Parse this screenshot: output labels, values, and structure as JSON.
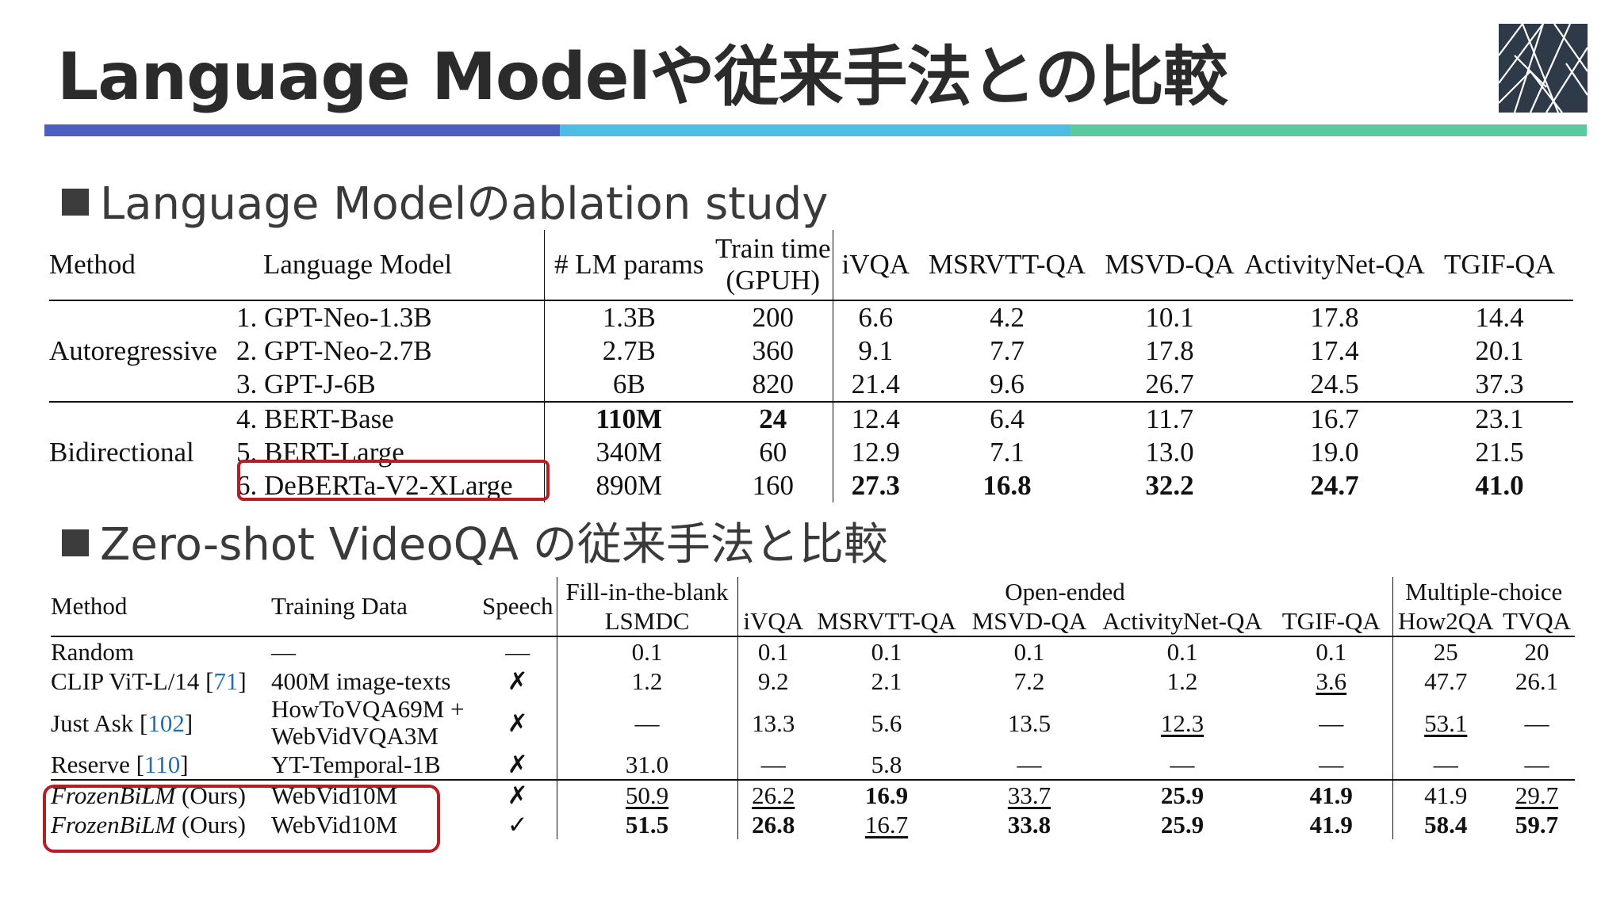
{
  "slide_title": "Language Modelや従来手法との比較",
  "accent_colors": [
    "#4a5fc1",
    "#4dbde5",
    "#5bcaa0"
  ],
  "highlight_color": "#b81d24",
  "section1": {
    "heading": "Language Modelのablation study",
    "header": {
      "method": "Method",
      "lm": "Language Model",
      "params": "# LM params",
      "train1": "Train time",
      "train2": "(GPUH)",
      "ivqa": "iVQA",
      "msrvtt": "MSRVTT-QA",
      "msvd": "MSVD-QA",
      "activitynet": "ActivityNet-QA",
      "tgif": "TGIF-QA"
    },
    "groups": [
      "Autoregressive",
      "Bidirectional"
    ],
    "rows": [
      {
        "lm": "1. GPT-Neo-1.3B",
        "params": "1.3B",
        "train": "200",
        "ivqa": "6.6",
        "msrvtt": "4.2",
        "msvd": "10.1",
        "activitynet": "17.8",
        "tgif": "14.4"
      },
      {
        "lm": "2. GPT-Neo-2.7B",
        "params": "2.7B",
        "train": "360",
        "ivqa": "9.1",
        "msrvtt": "7.7",
        "msvd": "17.8",
        "activitynet": "17.4",
        "tgif": "20.1"
      },
      {
        "lm": "3. GPT-J-6B",
        "params": "6B",
        "train": "820",
        "ivqa": "21.4",
        "msrvtt": "9.6",
        "msvd": "26.7",
        "activitynet": "24.5",
        "tgif": "37.3"
      },
      {
        "lm": "4. BERT-Base",
        "params": "110M",
        "train": "24",
        "ivqa": "12.4",
        "msrvtt": "6.4",
        "msvd": "11.7",
        "activitynet": "16.7",
        "tgif": "23.1"
      },
      {
        "lm": "5. BERT-Large",
        "params": "340M",
        "train": "60",
        "ivqa": "12.9",
        "msrvtt": "7.1",
        "msvd": "13.0",
        "activitynet": "19.0",
        "tgif": "21.5"
      },
      {
        "lm": "6. DeBERTa-V2-XLarge",
        "params": "890M",
        "train": "160",
        "ivqa": "27.3",
        "msrvtt": "16.8",
        "msvd": "32.2",
        "activitynet": "24.7",
        "tgif": "41.0"
      }
    ]
  },
  "section2": {
    "heading": "Zero-shot VideoQA の従来手法と比較",
    "header": {
      "method": "Method",
      "training_data": "Training Data",
      "speech": "Speech",
      "fill": "Fill-in-the-blank",
      "lsmdc": "LSMDC",
      "open": "Open-ended",
      "ivqa": "iVQA",
      "msrvtt": "MSRVTT-QA",
      "msvd": "MSVD-QA",
      "activitynet": "ActivityNet-QA",
      "tgif": "TGIF-QA",
      "mc": "Multiple-choice",
      "how2qa": "How2QA",
      "tvqa": "TVQA"
    },
    "rows": [
      {
        "method": "Random",
        "ref": "",
        "data": "—",
        "speech": "—",
        "lsmdc": "0.1",
        "ivqa": "0.1",
        "msrvtt": "0.1",
        "msvd": "0.1",
        "activitynet": "0.1",
        "tgif": "0.1",
        "how2qa": "25",
        "tvqa": "20"
      },
      {
        "method": "CLIP ViT-L/14 [",
        "ref": "71",
        "data": "400M image-texts",
        "speech": "✗",
        "lsmdc": "1.2",
        "ivqa": "9.2",
        "msrvtt": "2.1",
        "msvd": "7.2",
        "activitynet": "1.2",
        "tgif": "3.6",
        "how2qa": "47.7",
        "tvqa": "26.1"
      },
      {
        "method": "Just Ask [",
        "ref": "102",
        "data": "HowToVQA69M +",
        "data2": "WebVidVQA3M",
        "speech": "✗",
        "lsmdc": "—",
        "ivqa": "13.3",
        "msrvtt": "5.6",
        "msvd": "13.5",
        "activitynet": "12.3",
        "tgif": "—",
        "how2qa": "53.1",
        "tvqa": "—"
      },
      {
        "method": "Reserve [",
        "ref": "110",
        "data": "YT-Temporal-1B",
        "speech": "✗",
        "lsmdc": "31.0",
        "ivqa": "—",
        "msrvtt": "5.8",
        "msvd": "—",
        "activitynet": "—",
        "tgif": "—",
        "how2qa": "—",
        "tvqa": "—"
      },
      {
        "method": "FrozenBiLM",
        "suffix": " (Ours)",
        "data": "WebVid10M",
        "speech": "✗",
        "lsmdc": "50.9",
        "ivqa": "26.2",
        "msrvtt": "16.9",
        "msvd": "33.7",
        "activitynet": "25.9",
        "tgif": "41.9",
        "how2qa": "41.9",
        "tvqa": "29.7"
      },
      {
        "method": "FrozenBiLM",
        "suffix": " (Ours)",
        "data": "WebVid10M",
        "speech": "✓",
        "lsmdc": "51.5",
        "ivqa": "26.8",
        "msrvtt": "16.7",
        "msvd": "33.8",
        "activitynet": "25.9",
        "tgif": "41.9",
        "how2qa": "58.4",
        "tvqa": "59.7"
      }
    ]
  }
}
